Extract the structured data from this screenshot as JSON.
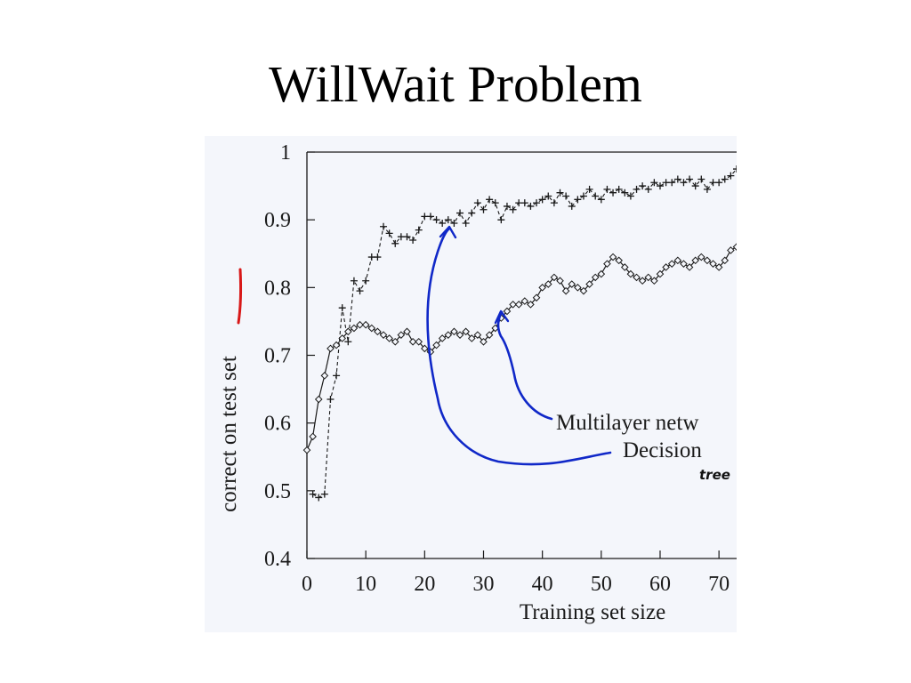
{
  "slide": {
    "title": "WillWait Problem"
  },
  "colors": {
    "annotation_blue": "#1028c8",
    "annotation_red": "#d81818",
    "ink": "#1a1a1a"
  },
  "chart_data": {
    "type": "line",
    "title": "",
    "xlabel": "Training set size",
    "ylabel": "correct on test set",
    "xlim": [
      0,
      73
    ],
    "ylim": [
      0.4,
      1.0
    ],
    "xticks": [
      0,
      10,
      20,
      30,
      40,
      50,
      60,
      70
    ],
    "yticks": [
      "0.4",
      "0.5",
      "0.6",
      "0.7",
      "0.8",
      "0.9",
      "1"
    ],
    "grid": false,
    "legend": "bottom-right",
    "series": [
      {
        "name": "Decision tree",
        "marker": "plus",
        "dashed": true,
        "x": [
          1,
          2,
          3,
          4,
          5,
          6,
          7,
          8,
          9,
          10,
          11,
          12,
          13,
          14,
          15,
          16,
          17,
          18,
          19,
          20,
          21,
          22,
          23,
          24,
          25,
          26,
          27,
          28,
          29,
          30,
          31,
          32,
          33,
          34,
          35,
          36,
          37,
          38,
          39,
          40,
          41,
          42,
          43,
          44,
          45,
          46,
          47,
          48,
          49,
          50,
          51,
          52,
          53,
          54,
          55,
          56,
          57,
          58,
          59,
          60,
          61,
          62,
          63,
          64,
          65,
          66,
          67,
          68,
          69,
          70,
          71,
          72,
          73
        ],
        "values": [
          0.495,
          0.49,
          0.495,
          0.635,
          0.67,
          0.77,
          0.72,
          0.81,
          0.795,
          0.81,
          0.845,
          0.845,
          0.89,
          0.88,
          0.865,
          0.875,
          0.875,
          0.87,
          0.885,
          0.905,
          0.905,
          0.9,
          0.895,
          0.9,
          0.895,
          0.91,
          0.895,
          0.91,
          0.925,
          0.915,
          0.93,
          0.925,
          0.9,
          0.92,
          0.915,
          0.925,
          0.925,
          0.92,
          0.925,
          0.93,
          0.935,
          0.925,
          0.94,
          0.935,
          0.92,
          0.93,
          0.935,
          0.945,
          0.935,
          0.93,
          0.945,
          0.94,
          0.945,
          0.94,
          0.935,
          0.945,
          0.95,
          0.945,
          0.955,
          0.95,
          0.955,
          0.955,
          0.96,
          0.955,
          0.96,
          0.95,
          0.96,
          0.945,
          0.955,
          0.955,
          0.96,
          0.965,
          0.975
        ]
      },
      {
        "name": "Multilayer network",
        "marker": "diamond",
        "dashed": false,
        "x": [
          0,
          1,
          2,
          3,
          4,
          5,
          6,
          7,
          8,
          9,
          10,
          11,
          12,
          13,
          14,
          15,
          16,
          17,
          18,
          19,
          20,
          21,
          22,
          23,
          24,
          25,
          26,
          27,
          28,
          29,
          30,
          31,
          32,
          33,
          34,
          35,
          36,
          37,
          38,
          39,
          40,
          41,
          42,
          43,
          44,
          45,
          46,
          47,
          48,
          49,
          50,
          51,
          52,
          53,
          54,
          55,
          56,
          57,
          58,
          59,
          60,
          61,
          62,
          63,
          64,
          65,
          66,
          67,
          68,
          69,
          70,
          71,
          72,
          73
        ],
        "values": [
          0.56,
          0.58,
          0.635,
          0.67,
          0.71,
          0.715,
          0.725,
          0.735,
          0.74,
          0.745,
          0.745,
          0.74,
          0.735,
          0.73,
          0.725,
          0.72,
          0.73,
          0.735,
          0.72,
          0.72,
          0.71,
          0.705,
          0.715,
          0.725,
          0.73,
          0.735,
          0.73,
          0.735,
          0.725,
          0.73,
          0.72,
          0.73,
          0.74,
          0.755,
          0.765,
          0.775,
          0.775,
          0.78,
          0.775,
          0.785,
          0.8,
          0.805,
          0.815,
          0.81,
          0.795,
          0.805,
          0.8,
          0.795,
          0.805,
          0.815,
          0.82,
          0.835,
          0.845,
          0.84,
          0.83,
          0.82,
          0.815,
          0.81,
          0.815,
          0.81,
          0.82,
          0.83,
          0.835,
          0.84,
          0.835,
          0.83,
          0.84,
          0.845,
          0.84,
          0.835,
          0.83,
          0.84,
          0.855,
          0.86
        ]
      }
    ],
    "legend_entries": [
      "Multilayer netw",
      "Decision"
    ],
    "handwritten_note": "tree"
  }
}
